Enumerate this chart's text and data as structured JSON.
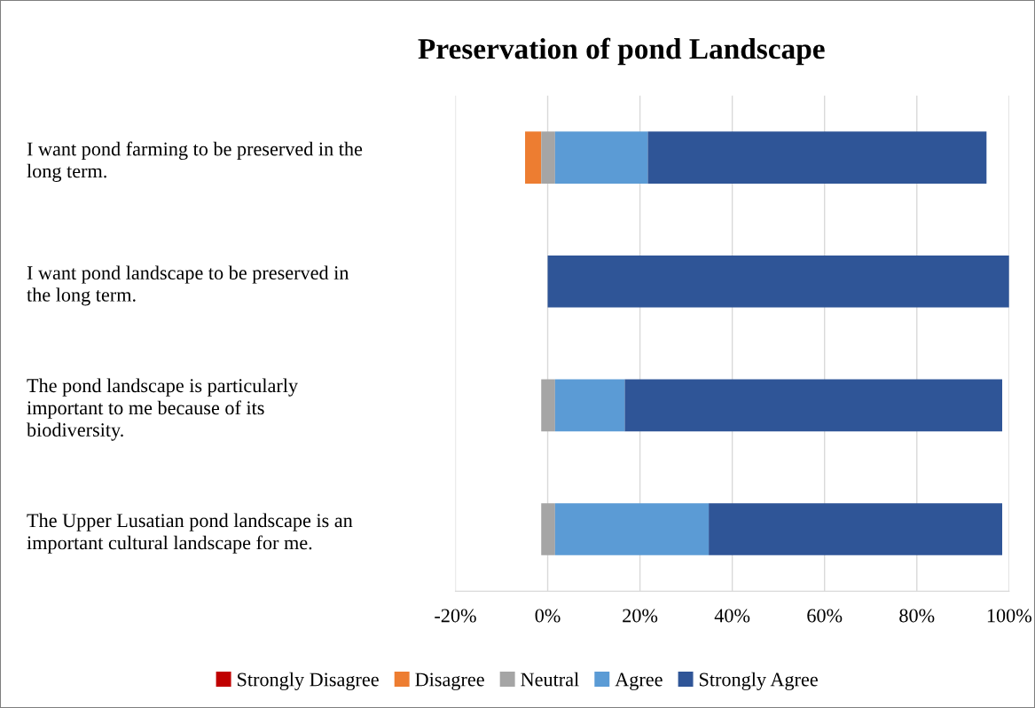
{
  "chart_data": {
    "type": "bar",
    "orientation": "horizontal",
    "title": "Preservation of pond Landscape",
    "categories": [
      "I want pond farming to be preserved in the long term.",
      "I want pond landscape to be preserved in the long term.",
      "The pond landscape is particularly important to me because of its biodiversity.",
      "The Upper Lusatian pond landscape is an important cultural landscape for me."
    ],
    "series": [
      {
        "name": "Strongly Disagree",
        "color": "#c00000",
        "base": [
          null,
          null,
          null,
          null
        ],
        "values": [
          null,
          null,
          null,
          null
        ]
      },
      {
        "name": "Disagree",
        "color": "#ed7d31",
        "base": [
          -4.9,
          null,
          null,
          null
        ],
        "values": [
          3.5,
          null,
          null,
          null
        ]
      },
      {
        "name": "Neutral",
        "color": "#a5a5a5",
        "base": [
          -1.4,
          null,
          -1.4,
          -1.4
        ],
        "values": [
          3.0,
          null,
          3.0,
          3.0
        ]
      },
      {
        "name": "Agree",
        "color": "#5b9bd5",
        "base": [
          1.6,
          null,
          1.6,
          1.6
        ],
        "values": [
          20.1,
          null,
          15.1,
          33.3
        ]
      },
      {
        "name": "Strongly Agree",
        "color": "#2f5597",
        "base": [
          21.7,
          0,
          16.7,
          34.9
        ],
        "values": [
          73.4,
          100,
          81.8,
          63.6
        ]
      }
    ],
    "xlim": [
      -20,
      100
    ],
    "xticks": [
      {
        "value": -20,
        "label": "-20%"
      },
      {
        "value": 0,
        "label": "0%"
      },
      {
        "value": 20,
        "label": "20%"
      },
      {
        "value": 40,
        "label": "40%"
      },
      {
        "value": 60,
        "label": "60%"
      },
      {
        "value": 80,
        "label": "80%"
      },
      {
        "value": 100,
        "label": "100%"
      }
    ],
    "grid": "x",
    "legend": "bottom"
  }
}
